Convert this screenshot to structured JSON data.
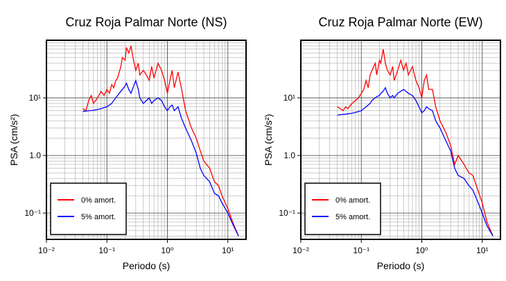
{
  "chart_data": [
    {
      "type": "line",
      "title": "Cruz Roja Palmar Norte (NS)",
      "x_label": "Periodo (s)",
      "y_label": "PSA (cm/s²)",
      "log_x": true,
      "log_y": true,
      "grid": true,
      "legend": "lower left",
      "xlim": [
        0.01,
        20
      ],
      "ylim": [
        0.035,
        100
      ],
      "xticks": [
        {
          "value": 0.01,
          "label": "10⁻²"
        },
        {
          "value": 0.1,
          "label": "10⁻¹"
        },
        {
          "value": 1,
          "label": "10⁰"
        },
        {
          "value": 10,
          "label": "10¹"
        }
      ],
      "yticks": [
        {
          "value": 0.1,
          "label": "10⁻¹"
        },
        {
          "value": 1,
          "label": "1.0"
        },
        {
          "value": 10,
          "label": "10¹"
        }
      ],
      "x": [
        0.04,
        0.045,
        0.05,
        0.055,
        0.06,
        0.07,
        0.08,
        0.09,
        0.1,
        0.11,
        0.12,
        0.13,
        0.14,
        0.15,
        0.17,
        0.18,
        0.2,
        0.21,
        0.23,
        0.25,
        0.27,
        0.3,
        0.33,
        0.35,
        0.4,
        0.45,
        0.5,
        0.55,
        0.6,
        0.7,
        0.8,
        0.9,
        1.0,
        1.1,
        1.2,
        1.3,
        1.5,
        1.7,
        2.0,
        2.5,
        3.0,
        3.5,
        4.0,
        5.0,
        6.0,
        7.0,
        8.0,
        10,
        12,
        15
      ],
      "series": [
        {
          "name": "0% amort.",
          "color": "#ff0000",
          "values": [
            6.5,
            6,
            9,
            11,
            8,
            10,
            13,
            11,
            14,
            12,
            17,
            15,
            20,
            22,
            35,
            50,
            45,
            75,
            60,
            80,
            50,
            30,
            40,
            25,
            30,
            25,
            20,
            35,
            22,
            40,
            30,
            20,
            12,
            20,
            30,
            15,
            28,
            15,
            6,
            3,
            2,
            1.2,
            0.8,
            0.6,
            0.35,
            0.3,
            0.2,
            0.12,
            0.07,
            0.04
          ]
        },
        {
          "name": "5% amort.",
          "color": "#0000ff",
          "values": [
            5.8,
            5.9,
            6,
            6,
            6.1,
            6.3,
            6.5,
            6.8,
            7,
            7.5,
            8,
            9,
            10,
            11,
            13,
            14,
            16,
            18,
            14,
            12,
            15,
            20,
            14,
            10,
            8,
            9,
            10,
            8,
            9,
            10,
            9,
            7,
            6,
            7,
            7.5,
            6,
            7,
            4.5,
            3,
            1.8,
            1.1,
            0.6,
            0.45,
            0.35,
            0.22,
            0.2,
            0.15,
            0.1,
            0.065,
            0.04
          ]
        }
      ]
    },
    {
      "type": "line",
      "title": "Cruz Roja Palmar Norte (EW)",
      "x_label": "Periodo (s)",
      "y_label": "PSA (cm/s²)",
      "log_x": true,
      "log_y": true,
      "grid": true,
      "legend": "lower left",
      "xlim": [
        0.01,
        20
      ],
      "ylim": [
        0.035,
        100
      ],
      "xticks": [
        {
          "value": 0.01,
          "label": "10⁻²"
        },
        {
          "value": 0.1,
          "label": "10⁻¹"
        },
        {
          "value": 1,
          "label": "10⁰"
        },
        {
          "value": 10,
          "label": "10¹"
        }
      ],
      "yticks": [
        {
          "value": 0.1,
          "label": "10⁻¹"
        },
        {
          "value": 1,
          "label": "1.0"
        },
        {
          "value": 10,
          "label": "10¹"
        }
      ],
      "x": [
        0.04,
        0.045,
        0.05,
        0.055,
        0.06,
        0.07,
        0.08,
        0.09,
        0.1,
        0.11,
        0.12,
        0.13,
        0.14,
        0.15,
        0.17,
        0.18,
        0.2,
        0.21,
        0.23,
        0.25,
        0.27,
        0.3,
        0.33,
        0.35,
        0.4,
        0.45,
        0.5,
        0.55,
        0.6,
        0.7,
        0.8,
        0.9,
        1.0,
        1.1,
        1.2,
        1.3,
        1.5,
        1.7,
        2.0,
        2.5,
        3.0,
        3.5,
        4.0,
        5.0,
        6.0,
        7.0,
        8.0,
        10,
        12,
        15
      ],
      "series": [
        {
          "name": "0% amort.",
          "color": "#ff0000",
          "values": [
            7,
            6.5,
            6,
            7,
            6.5,
            8,
            9,
            10,
            12,
            14,
            20,
            15,
            25,
            30,
            40,
            25,
            45,
            40,
            70,
            40,
            30,
            25,
            35,
            20,
            30,
            45,
            30,
            40,
            25,
            35,
            20,
            15,
            10,
            20,
            25,
            14,
            14,
            7,
            4,
            2.5,
            1.5,
            0.7,
            1,
            0.7,
            0.5,
            0.45,
            0.3,
            0.15,
            0.07,
            0.04
          ]
        },
        {
          "name": "5% amort.",
          "color": "#0000ff",
          "values": [
            5,
            5.1,
            5.2,
            5.2,
            5.3,
            5.4,
            5.6,
            5.8,
            6,
            6.5,
            7,
            7.5,
            8,
            9,
            10,
            10.5,
            11,
            12,
            13,
            15,
            12,
            10,
            11,
            10,
            12,
            13,
            14,
            13,
            12,
            11,
            9,
            7,
            5.5,
            6,
            7,
            6.5,
            6,
            4,
            3,
            1.8,
            1.2,
            0.6,
            0.45,
            0.4,
            0.3,
            0.25,
            0.18,
            0.1,
            0.06,
            0.04
          ]
        }
      ]
    }
  ]
}
